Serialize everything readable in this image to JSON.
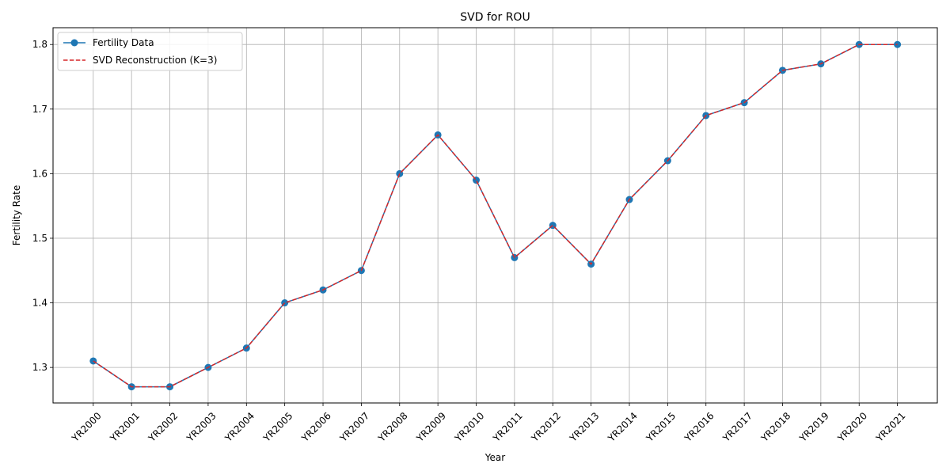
{
  "chart_data": {
    "type": "line",
    "title": "SVD for ROU",
    "xlabel": "Year",
    "ylabel": "Fertility Rate",
    "categories": [
      "YR2000",
      "YR2001",
      "YR2002",
      "YR2003",
      "YR2004",
      "YR2005",
      "YR2006",
      "YR2007",
      "YR2008",
      "YR2009",
      "YR2010",
      "YR2011",
      "YR2012",
      "YR2013",
      "YR2014",
      "YR2015",
      "YR2016",
      "YR2017",
      "YR2018",
      "YR2019",
      "YR2020",
      "YR2021"
    ],
    "ylim": [
      1.245,
      1.826
    ],
    "yticks": [
      1.3,
      1.4,
      1.5,
      1.6,
      1.7,
      1.8
    ],
    "grid": true,
    "legend_position": "top-left",
    "series": [
      {
        "name": "Fertility Data",
        "color": "#1f77b4",
        "style": "solid-with-markers",
        "values": [
          1.31,
          1.27,
          1.27,
          1.3,
          1.33,
          1.4,
          1.42,
          1.45,
          1.6,
          1.66,
          1.59,
          1.47,
          1.52,
          1.46,
          1.56,
          1.62,
          1.69,
          1.71,
          1.76,
          1.77,
          1.8,
          1.8
        ]
      },
      {
        "name": "SVD Reconstruction (K=3)",
        "color": "#d62728",
        "style": "dashed",
        "values": [
          1.31,
          1.27,
          1.27,
          1.3,
          1.33,
          1.4,
          1.42,
          1.45,
          1.6,
          1.66,
          1.59,
          1.47,
          1.52,
          1.46,
          1.56,
          1.62,
          1.69,
          1.71,
          1.76,
          1.77,
          1.8,
          1.8
        ]
      }
    ]
  }
}
